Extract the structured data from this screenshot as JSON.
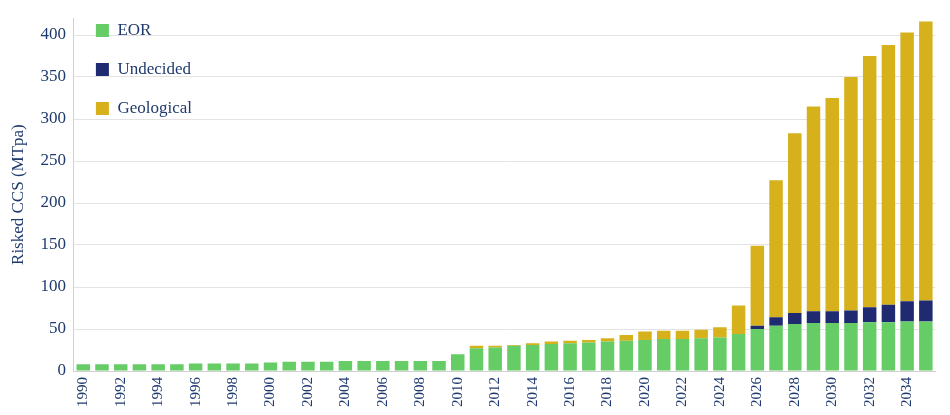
{
  "chart_data": {
    "type": "bar",
    "y_label": "Risked CCS (MTpa)",
    "categories": [
      "1990",
      null,
      "1992",
      null,
      "1994",
      null,
      "1996",
      null,
      "1998",
      null,
      "2000",
      null,
      "2002",
      null,
      "2004",
      null,
      "2006",
      null,
      "2008",
      null,
      "2010",
      null,
      "2012",
      null,
      "2014",
      null,
      "2016",
      null,
      "2018",
      null,
      "2020",
      null,
      "2022",
      null,
      "2024",
      null,
      "2026",
      null,
      "2028",
      null,
      "2030",
      null,
      "2032",
      null,
      "2034",
      null
    ],
    "series": [
      {
        "name": "EOR",
        "color": "#66cc66",
        "values": [
          8,
          8,
          8,
          8,
          8,
          8,
          9,
          9,
          9,
          9,
          10,
          11,
          11,
          11,
          12,
          12,
          12,
          12,
          12,
          12,
          20,
          27,
          28,
          30,
          31,
          32,
          33,
          34,
          35,
          36,
          37,
          38,
          38,
          39,
          40,
          44,
          50,
          54,
          56,
          57,
          57,
          57,
          58,
          58,
          59,
          59
        ]
      },
      {
        "name": "Undecided",
        "color": "#1f2a70",
        "values": [
          0,
          0,
          0,
          0,
          0,
          0,
          0,
          0,
          0,
          0,
          0,
          0,
          0,
          0,
          0,
          0,
          0,
          0,
          0,
          0,
          0,
          0,
          0,
          0,
          0,
          0,
          0,
          0,
          0,
          0,
          0,
          0,
          0,
          0,
          0,
          0,
          4,
          10,
          13,
          14,
          14,
          15,
          18,
          21,
          24,
          25
        ]
      },
      {
        "name": "Geological",
        "color": "#d6b11c",
        "values": [
          0,
          0,
          0,
          0,
          0,
          0,
          0,
          0,
          0,
          0,
          0,
          0,
          0,
          0,
          0,
          0,
          0,
          0,
          0,
          0,
          0,
          3,
          2,
          1,
          2,
          3,
          3,
          3,
          4,
          7,
          10,
          10,
          10,
          10,
          12,
          34,
          95,
          163,
          214,
          244,
          254,
          278,
          299,
          309,
          320,
          332
        ]
      }
    ],
    "ylim": [
      0,
      420
    ],
    "yticks": [
      0,
      50,
      100,
      150,
      200,
      250,
      300,
      350,
      400
    ],
    "stacked": true,
    "grid": true,
    "legend": "top left"
  }
}
